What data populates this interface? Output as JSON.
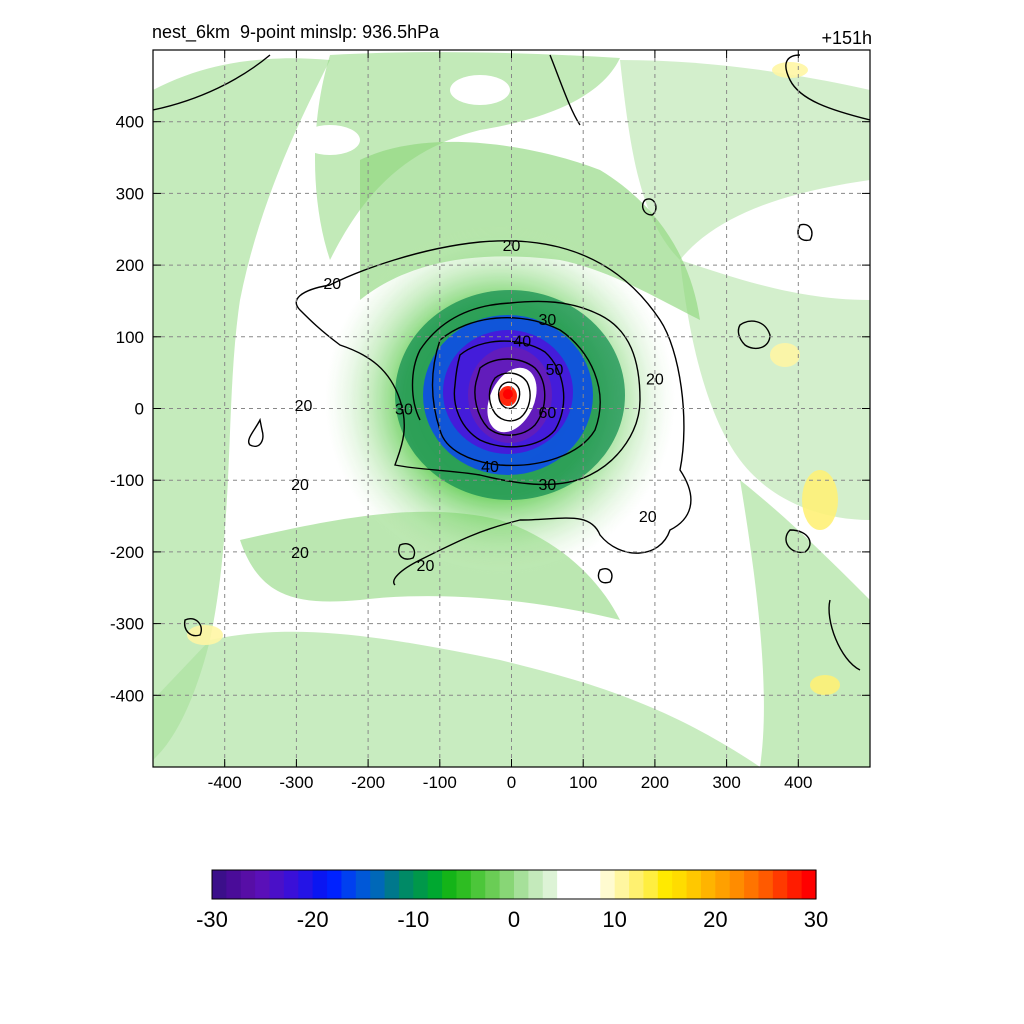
{
  "chart_data": {
    "type": "heatmap",
    "title_left": "nest_6km  9-point minslp: 936.5hPa",
    "title_right": "+151h",
    "xlabel": "",
    "ylabel": "",
    "xlim": [
      -500,
      500
    ],
    "ylim": [
      -500,
      500
    ],
    "x_ticks": [
      -400,
      -300,
      -200,
      -100,
      0,
      100,
      200,
      300,
      400
    ],
    "y_ticks": [
      400,
      300,
      200,
      100,
      0,
      -100,
      -200,
      -300,
      -400
    ],
    "grid": "dashed",
    "contour_labels": [
      {
        "text": "20",
        "x": 0,
        "y": 228
      },
      {
        "text": "20",
        "x": -250,
        "y": 175
      },
      {
        "text": "20",
        "x": -290,
        "y": 5
      },
      {
        "text": "20",
        "x": -295,
        "y": -105
      },
      {
        "text": "20",
        "x": -295,
        "y": -200
      },
      {
        "text": "20",
        "x": -120,
        "y": -218
      },
      {
        "text": "20",
        "x": 200,
        "y": 42
      },
      {
        "text": "20",
        "x": 190,
        "y": -150
      },
      {
        "text": "30",
        "x": 50,
        "y": 125
      },
      {
        "text": "30",
        "x": -150,
        "y": 0
      },
      {
        "text": "30",
        "x": 50,
        "y": -105
      },
      {
        "text": "40",
        "x": 15,
        "y": 95
      },
      {
        "text": "40",
        "x": -30,
        "y": -80
      },
      {
        "text": "50",
        "x": 60,
        "y": 55
      },
      {
        "text": "60",
        "x": 50,
        "y": -5
      }
    ],
    "storm_center": {
      "x": -5,
      "y": 20
    },
    "colorbar": {
      "min": -30,
      "max": 30,
      "tick_labels": [
        "-30",
        "-20",
        "-10",
        "0",
        "10",
        "20",
        "30"
      ],
      "colors": [
        "#3b0f8a",
        "#4a0c99",
        "#570ea6",
        "#5a10b8",
        "#4a10c8",
        "#3a10d8",
        "#2414e6",
        "#0a16f2",
        "#0022ff",
        "#0040f0",
        "#0058d8",
        "#0068b8",
        "#00788c",
        "#008a66",
        "#00984a",
        "#00a830",
        "#14b418",
        "#2ebd22",
        "#4cc63a",
        "#6acd55",
        "#88d676",
        "#a6e09a",
        "#c4eabb",
        "#ddf3d6",
        "#ffffff",
        "#ffffff",
        "#ffffff",
        "#fffbd0",
        "#fff6a0",
        "#fff170",
        "#ffee40",
        "#ffea00",
        "#ffdc00",
        "#ffc800",
        "#ffb400",
        "#ffa000",
        "#ff8c00",
        "#ff7400",
        "#ff5a00",
        "#ff3a00",
        "#ff1c00",
        "#ff0000"
      ]
    }
  }
}
